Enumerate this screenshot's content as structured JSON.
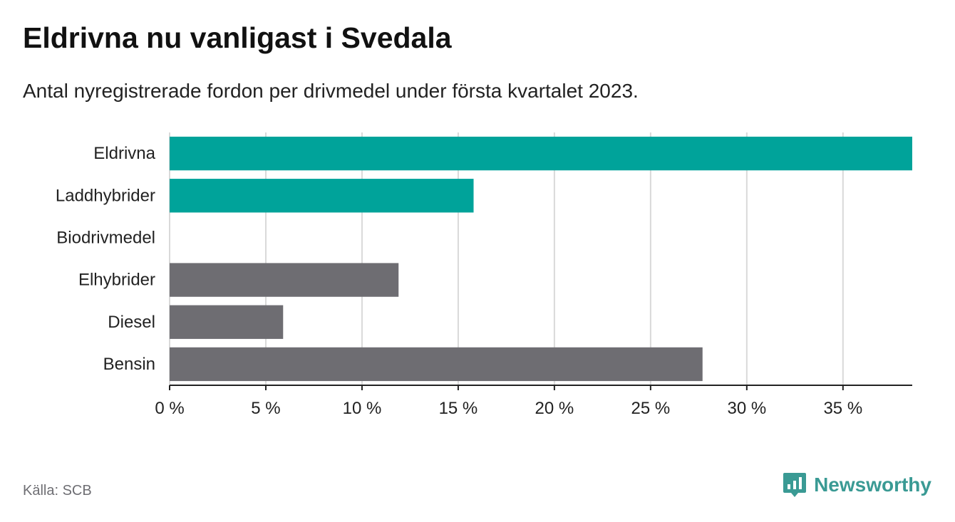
{
  "title": "Eldrivna nu vanligast i Svedala",
  "subtitle": "Antal nyregistrerade fordon per drivmedel under första kvartalet 2023.",
  "source": "Källa: SCB",
  "brand": {
    "name": "Newsworthy",
    "icon": "newsworthy-logo-icon"
  },
  "colors": {
    "highlight": "#00a39a",
    "other": "#6e6d72",
    "grid": "#d9d9d9",
    "axis": "#222222",
    "text": "#222222"
  },
  "chart_data": {
    "type": "bar",
    "orientation": "horizontal",
    "categories": [
      "Eldrivna",
      "Laddhybrider",
      "Biodrivmedel",
      "Elhybrider",
      "Diesel",
      "Bensin"
    ],
    "values": [
      38.6,
      15.8,
      0,
      11.9,
      5.9,
      27.7
    ],
    "bar_colors": [
      "#00a39a",
      "#00a39a",
      "#00a39a",
      "#6e6d72",
      "#6e6d72",
      "#6e6d72"
    ],
    "xlim": [
      0,
      38.6
    ],
    "xticks": [
      0,
      5,
      10,
      15,
      20,
      25,
      30,
      35
    ],
    "tick_labels": [
      "0 %",
      "5 %",
      "10 %",
      "15 %",
      "20 %",
      "25 %",
      "30 %",
      "35 %"
    ],
    "grid": true,
    "xlabel": "",
    "ylabel": ""
  }
}
